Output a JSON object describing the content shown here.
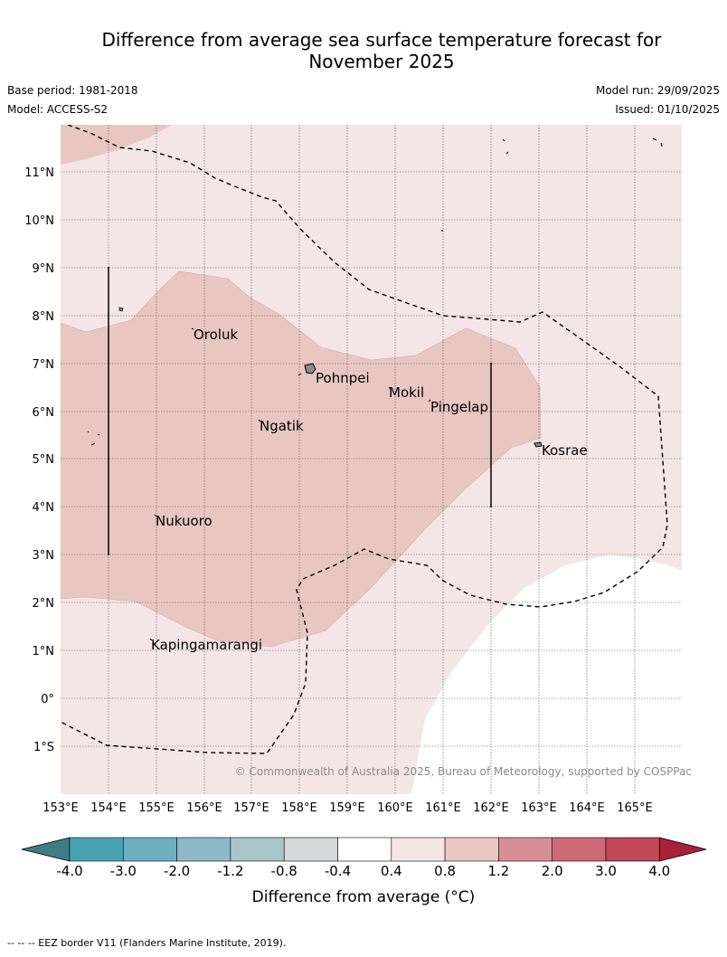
{
  "header": {
    "title_line1": "Difference from average sea surface temperature forecast for",
    "title_line2": "November 2025",
    "base_period": "Base period: 1981-2018",
    "model": "Model: ACCESS-S2",
    "model_run": "Model run: 29/09/2025",
    "issued": "Issued: 01/10/2025"
  },
  "map": {
    "lat_labels": [
      "11°N",
      "10°N",
      "9°N",
      "8°N",
      "7°N",
      "6°N",
      "5°N",
      "4°N",
      "3°N",
      "2°N",
      "1°N",
      "0°",
      "1°S"
    ],
    "lon_labels": [
      "153°E",
      "154°E",
      "155°E",
      "156°E",
      "157°E",
      "158°E",
      "159°E",
      "160°E",
      "161°E",
      "162°E",
      "163°E",
      "164°E",
      "165°E"
    ],
    "places": {
      "oroluk": "Oroluk",
      "pohnpei": "Pohnpei",
      "mokil": "Mokil",
      "pingelap": "Pingelap",
      "ngatik": "Ngatik",
      "kosrae": "Kosrae",
      "nukuoro": "Nukuoro",
      "kapingamarangi": "Kapingamarangi"
    },
    "copyright": "© Commonwealth of Australia 2025, Bureau of Meteorology, supported by COSPPac"
  },
  "colorbar": {
    "ticks": [
      "-4.0",
      "-3.0",
      "-2.0",
      "-1.2",
      "-0.8",
      "-0.4",
      "0.4",
      "0.8",
      "1.2",
      "2.0",
      "3.0",
      "4.0"
    ],
    "colors": [
      "#3f7d86",
      "#4aa3b3",
      "#6eb0c0",
      "#8dbac6",
      "#a9c7cb",
      "#d4d8d9",
      "#ffffff",
      "#f4e6e5",
      "#e8c7c2",
      "#d88f96",
      "#cc6b76",
      "#c04857",
      "#a8203a"
    ],
    "label": "Difference from average (°C)"
  },
  "footnote": "--  --  -- EEZ border V11 (Flanders Marine Institute, 2019)."
}
